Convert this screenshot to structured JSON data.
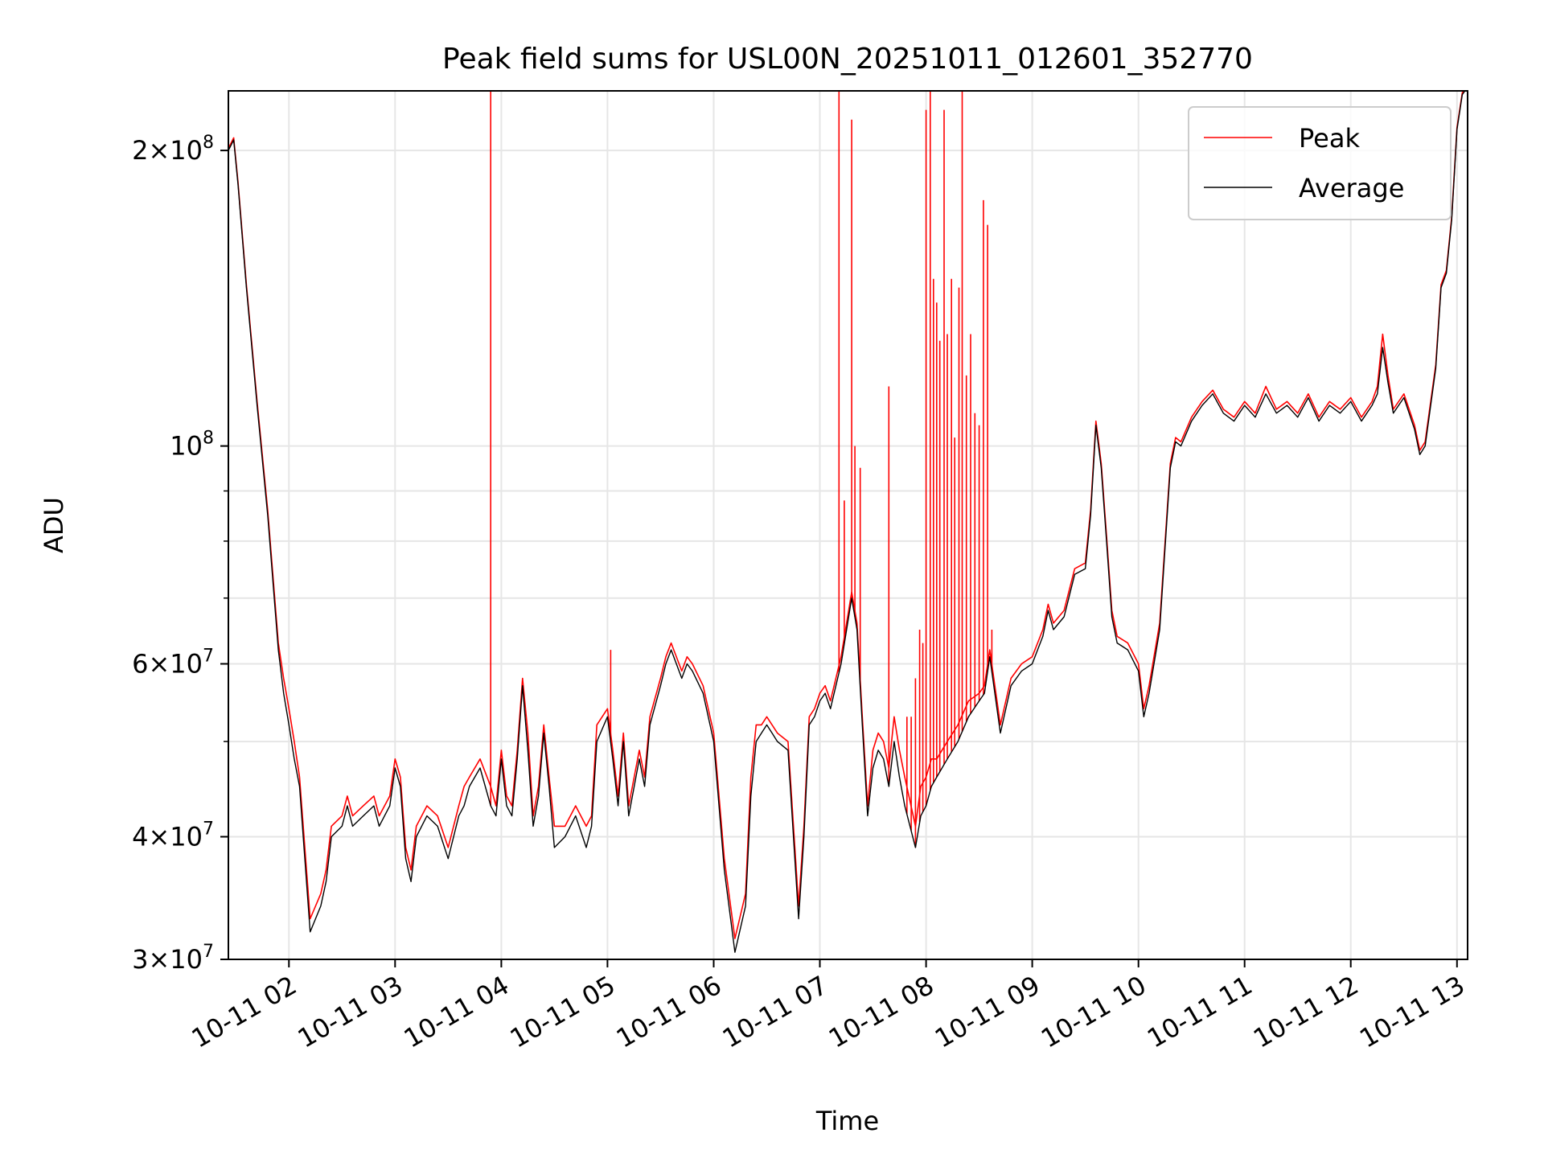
{
  "chart_data": {
    "type": "line",
    "title": "Peak field sums for USL00N_20251011_012601_352770",
    "xlabel": "Time",
    "ylabel": "ADU",
    "yscale": "log",
    "grid": true,
    "legend_position": "top-right",
    "xlim": [
      1.43,
      13.1
    ],
    "ylim": [
      30000000,
      230000000
    ],
    "x_unit": "hours since 2025-10-11 00:00",
    "x_ticks": [
      {
        "value": 2,
        "label": "10-11 02"
      },
      {
        "value": 3,
        "label": "10-11 03"
      },
      {
        "value": 4,
        "label": "10-11 04"
      },
      {
        "value": 5,
        "label": "10-11 05"
      },
      {
        "value": 6,
        "label": "10-11 06"
      },
      {
        "value": 7,
        "label": "10-11 07"
      },
      {
        "value": 8,
        "label": "10-11 08"
      },
      {
        "value": 9,
        "label": "10-11 09"
      },
      {
        "value": 10,
        "label": "10-11 10"
      },
      {
        "value": 11,
        "label": "10-11 11"
      },
      {
        "value": 12,
        "label": "10-11 12"
      },
      {
        "value": 13,
        "label": "10-11 13"
      }
    ],
    "y_ticks": [
      {
        "value": 30000000,
        "mant": "3",
        "exp": "7"
      },
      {
        "value": 40000000,
        "mant": "4",
        "exp": "7"
      },
      {
        "value": 60000000,
        "mant": "6",
        "exp": "7"
      },
      {
        "value": 100000000,
        "mant": "",
        "exp": "8"
      },
      {
        "value": 200000000,
        "mant": "2",
        "exp": "8"
      }
    ],
    "y_minor_ticks": [
      50000000,
      70000000,
      80000000,
      90000000
    ],
    "average": {
      "x": [
        1.43,
        1.48,
        1.52,
        1.6,
        1.7,
        1.8,
        1.9,
        1.95,
        2.0,
        2.05,
        2.1,
        2.2,
        2.3,
        2.35,
        2.4,
        2.5,
        2.55,
        2.6,
        2.7,
        2.8,
        2.85,
        2.95,
        3.0,
        3.05,
        3.1,
        3.15,
        3.2,
        3.3,
        3.4,
        3.5,
        3.6,
        3.65,
        3.7,
        3.8,
        3.9,
        3.95,
        4.0,
        4.05,
        4.1,
        4.15,
        4.2,
        4.25,
        4.3,
        4.35,
        4.4,
        4.45,
        4.5,
        4.6,
        4.7,
        4.8,
        4.85,
        4.9,
        5.0,
        5.05,
        5.1,
        5.15,
        5.2,
        5.3,
        5.35,
        5.4,
        5.5,
        5.55,
        5.6,
        5.7,
        5.75,
        5.8,
        5.9,
        6.0,
        6.1,
        6.2,
        6.3,
        6.35,
        6.4,
        6.45,
        6.5,
        6.55,
        6.6,
        6.7,
        6.8,
        6.85,
        6.9,
        6.95,
        7.0,
        7.05,
        7.1,
        7.2,
        7.3,
        7.35,
        7.4,
        7.45,
        7.5,
        7.55,
        7.6,
        7.65,
        7.7,
        7.75,
        7.8,
        7.9,
        7.95,
        8.0,
        8.05,
        8.1,
        8.2,
        8.3,
        8.4,
        8.5,
        8.55,
        8.6,
        8.7,
        8.8,
        8.9,
        9.0,
        9.1,
        9.15,
        9.2,
        9.3,
        9.4,
        9.5,
        9.55,
        9.6,
        9.65,
        9.7,
        9.75,
        9.8,
        9.9,
        10.0,
        10.05,
        10.1,
        10.2,
        10.3,
        10.35,
        10.4,
        10.5,
        10.6,
        10.7,
        10.8,
        10.9,
        11.0,
        11.1,
        11.2,
        11.3,
        11.4,
        11.5,
        11.6,
        11.7,
        11.8,
        11.9,
        12.0,
        12.1,
        12.2,
        12.25,
        12.3,
        12.35,
        12.4,
        12.5,
        12.6,
        12.65,
        12.7,
        12.8,
        12.85,
        12.9,
        12.95,
        13.0,
        13.05,
        13.1
      ],
      "y": [
        200000000,
        205000000,
        185000000,
        145000000,
        110000000,
        85000000,
        62000000,
        56000000,
        52000000,
        48000000,
        45000000,
        32000000,
        34000000,
        36000000,
        40000000,
        41000000,
        43000000,
        41000000,
        42000000,
        43000000,
        41000000,
        43000000,
        47000000,
        45000000,
        38000000,
        36000000,
        40000000,
        42000000,
        41000000,
        38000000,
        42000000,
        43000000,
        45000000,
        47000000,
        43000000,
        42000000,
        48000000,
        43000000,
        42000000,
        48000000,
        57000000,
        49000000,
        41000000,
        44000000,
        51000000,
        45000000,
        39000000,
        40000000,
        42000000,
        39000000,
        41000000,
        50000000,
        53000000,
        48000000,
        43000000,
        50000000,
        42000000,
        48000000,
        45000000,
        52000000,
        57000000,
        60000000,
        62000000,
        58000000,
        60000000,
        59000000,
        56000000,
        50000000,
        37000000,
        30500000,
        34000000,
        44000000,
        50000000,
        51000000,
        52000000,
        51000000,
        50000000,
        49000000,
        33000000,
        40000000,
        52000000,
        53000000,
        55000000,
        56000000,
        54000000,
        60000000,
        70000000,
        65000000,
        52000000,
        42000000,
        47000000,
        49000000,
        48000000,
        45000000,
        50000000,
        46000000,
        43000000,
        39000000,
        42000000,
        43000000,
        45000000,
        46000000,
        48000000,
        50000000,
        53000000,
        55000000,
        56000000,
        61000000,
        51000000,
        57000000,
        59000000,
        60000000,
        64000000,
        68000000,
        65000000,
        67000000,
        74000000,
        75000000,
        85000000,
        105000000,
        95000000,
        80000000,
        67000000,
        63000000,
        62000000,
        59000000,
        53000000,
        56000000,
        65000000,
        95000000,
        101000000,
        100000000,
        106000000,
        110000000,
        113000000,
        108000000,
        106000000,
        110000000,
        107000000,
        113000000,
        108000000,
        110000000,
        107000000,
        112000000,
        106000000,
        110000000,
        108000000,
        111000000,
        106000000,
        110000000,
        113000000,
        126000000,
        116000000,
        108000000,
        112000000,
        104000000,
        98000000,
        100000000,
        120000000,
        145000000,
        150000000,
        170000000,
        210000000,
        228000000,
        232000000
      ]
    },
    "peak": {
      "x": [
        1.43,
        1.48,
        1.52,
        1.6,
        1.7,
        1.8,
        1.9,
        1.95,
        2.0,
        2.05,
        2.1,
        2.2,
        2.3,
        2.35,
        2.4,
        2.5,
        2.55,
        2.6,
        2.7,
        2.8,
        2.85,
        2.95,
        3.0,
        3.05,
        3.1,
        3.15,
        3.2,
        3.3,
        3.4,
        3.5,
        3.6,
        3.65,
        3.7,
        3.8,
        3.9,
        3.95,
        4.0,
        4.05,
        4.1,
        4.15,
        4.2,
        4.25,
        4.3,
        4.35,
        4.4,
        4.45,
        4.5,
        4.6,
        4.7,
        4.8,
        4.85,
        4.9,
        5.0,
        5.05,
        5.1,
        5.15,
        5.2,
        5.3,
        5.35,
        5.4,
        5.5,
        5.55,
        5.6,
        5.7,
        5.75,
        5.8,
        5.9,
        6.0,
        6.1,
        6.2,
        6.3,
        6.35,
        6.4,
        6.45,
        6.5,
        6.55,
        6.6,
        6.7,
        6.8,
        6.85,
        6.9,
        6.95,
        7.0,
        7.05,
        7.1,
        7.2,
        7.3,
        7.35,
        7.4,
        7.45,
        7.5,
        7.55,
        7.6,
        7.65,
        7.7,
        7.75,
        7.8,
        7.9,
        7.95,
        8.0,
        8.05,
        8.1,
        8.2,
        8.3,
        8.4,
        8.5,
        8.55,
        8.6,
        8.7,
        8.8,
        8.9,
        9.0,
        9.1,
        9.15,
        9.2,
        9.3,
        9.4,
        9.5,
        9.55,
        9.6,
        9.65,
        9.7,
        9.75,
        9.8,
        9.9,
        10.0,
        10.05,
        10.1,
        10.2,
        10.3,
        10.35,
        10.4,
        10.5,
        10.6,
        10.7,
        10.8,
        10.9,
        11.0,
        11.1,
        11.2,
        11.3,
        11.4,
        11.5,
        11.6,
        11.7,
        11.8,
        11.9,
        12.0,
        12.1,
        12.2,
        12.25,
        12.3,
        12.35,
        12.4,
        12.5,
        12.6,
        12.65,
        12.7,
        12.8,
        12.85,
        12.9,
        12.95,
        13.0,
        13.05,
        13.1
      ],
      "y": [
        201000000,
        206000000,
        186000000,
        146000000,
        111000000,
        86000000,
        63000000,
        58000000,
        54000000,
        50000000,
        46000000,
        33000000,
        35000000,
        37000000,
        41000000,
        42000000,
        44000000,
        42000000,
        43000000,
        44000000,
        42000000,
        44000000,
        48000000,
        46000000,
        39000000,
        37000000,
        41000000,
        43000000,
        42000000,
        39000000,
        43000000,
        45000000,
        46000000,
        48000000,
        45000000,
        43000000,
        49000000,
        44000000,
        43000000,
        49000000,
        58000000,
        51000000,
        42000000,
        45000000,
        52000000,
        46000000,
        41000000,
        41000000,
        43000000,
        41000000,
        42000000,
        52000000,
        54000000,
        49000000,
        44000000,
        51000000,
        43000000,
        49000000,
        46000000,
        53000000,
        58000000,
        61000000,
        63000000,
        59000000,
        61000000,
        60000000,
        57000000,
        51000000,
        38000000,
        31500000,
        35000000,
        46000000,
        52000000,
        52000000,
        53000000,
        52000000,
        51000000,
        50000000,
        34000000,
        41000000,
        53000000,
        54000000,
        56000000,
        57000000,
        55000000,
        61000000,
        71000000,
        66000000,
        53000000,
        43000000,
        49000000,
        51000000,
        50000000,
        47000000,
        53000000,
        49000000,
        46000000,
        41000000,
        45000000,
        46000000,
        48000000,
        48000000,
        50000000,
        52000000,
        55000000,
        56000000,
        57000000,
        62000000,
        52000000,
        58000000,
        60000000,
        61000000,
        65000000,
        69000000,
        66000000,
        68000000,
        75000000,
        76000000,
        86000000,
        106000000,
        96000000,
        81000000,
        68000000,
        64000000,
        63000000,
        60000000,
        54000000,
        57000000,
        66000000,
        96000000,
        102000000,
        101000000,
        107000000,
        111000000,
        114000000,
        109000000,
        107000000,
        111000000,
        108000000,
        115000000,
        109000000,
        111000000,
        108000000,
        113000000,
        107000000,
        111000000,
        109000000,
        112000000,
        107000000,
        111000000,
        115000000,
        130000000,
        118000000,
        109000000,
        113000000,
        105000000,
        99000000,
        101000000,
        121000000,
        146000000,
        151000000,
        171000000,
        211000000,
        229000000,
        233000000
      ]
    },
    "peak_spikes": [
      {
        "x": 3.9,
        "y": 240000000
      },
      {
        "x": 5.03,
        "y": 62000000
      },
      {
        "x": 7.18,
        "y": 240000000
      },
      {
        "x": 7.23,
        "y": 88000000
      },
      {
        "x": 7.3,
        "y": 215000000
      },
      {
        "x": 7.33,
        "y": 100000000
      },
      {
        "x": 7.38,
        "y": 95000000
      },
      {
        "x": 7.65,
        "y": 115000000
      },
      {
        "x": 7.82,
        "y": 53000000
      },
      {
        "x": 7.86,
        "y": 53000000
      },
      {
        "x": 7.9,
        "y": 58000000
      },
      {
        "x": 7.94,
        "y": 65000000
      },
      {
        "x": 7.97,
        "y": 63000000
      },
      {
        "x": 8.0,
        "y": 220000000
      },
      {
        "x": 8.04,
        "y": 240000000
      },
      {
        "x": 8.07,
        "y": 148000000
      },
      {
        "x": 8.1,
        "y": 140000000
      },
      {
        "x": 8.13,
        "y": 128000000
      },
      {
        "x": 8.17,
        "y": 220000000
      },
      {
        "x": 8.2,
        "y": 130000000
      },
      {
        "x": 8.24,
        "y": 148000000
      },
      {
        "x": 8.27,
        "y": 102000000
      },
      {
        "x": 8.31,
        "y": 145000000
      },
      {
        "x": 8.34,
        "y": 240000000
      },
      {
        "x": 8.38,
        "y": 118000000
      },
      {
        "x": 8.42,
        "y": 130000000
      },
      {
        "x": 8.46,
        "y": 108000000
      },
      {
        "x": 8.5,
        "y": 105000000
      },
      {
        "x": 8.54,
        "y": 178000000
      },
      {
        "x": 8.58,
        "y": 168000000
      },
      {
        "x": 8.62,
        "y": 65000000
      }
    ],
    "series": [
      {
        "name": "Peak",
        "color": "#ff0000"
      },
      {
        "name": "Average",
        "color": "#000000"
      }
    ]
  }
}
